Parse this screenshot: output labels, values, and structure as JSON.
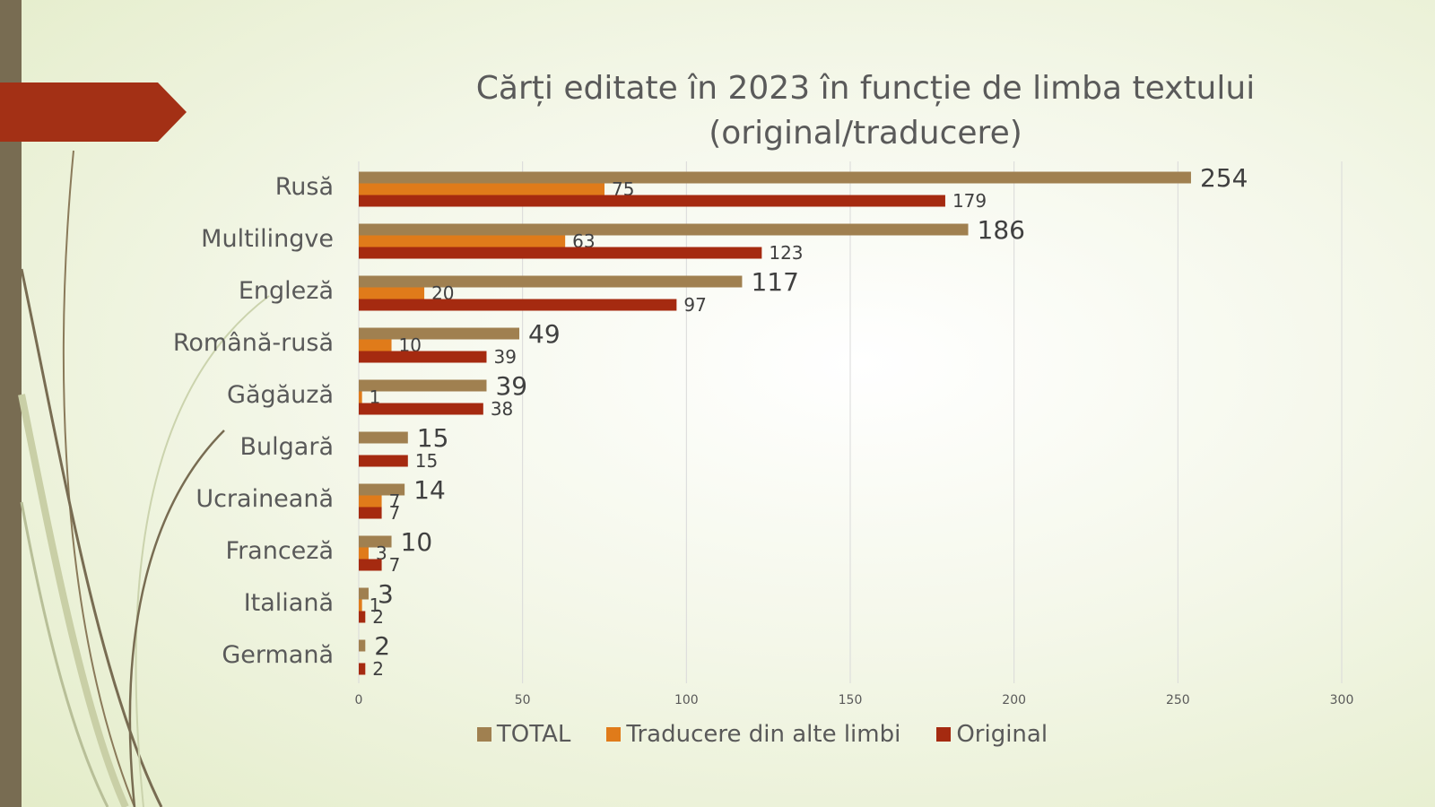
{
  "colors": {
    "left_bar": "#786c52",
    "arrow": "#a33015",
    "total": "#a08050",
    "translation": "#e07b1a",
    "original": "#a52a10",
    "gridline": "#d9d9d9",
    "text": "#595959"
  },
  "chart_data": {
    "type": "bar",
    "orientation": "horizontal",
    "title": "Cărți editate în 2023 în funcție de limba textului (original/traducere)",
    "title_lines": [
      "Cărți editate în 2023 în funcție de limba textului",
      "(original/traducere)"
    ],
    "categories": [
      "Rusă",
      "Multilingve",
      "Engleză",
      "Română-rusă",
      "Găgăuză",
      "Bulgară",
      "Ucraineană",
      "Franceză",
      "Italiană",
      "Germană"
    ],
    "series": [
      {
        "name": "TOTAL",
        "color": "#a08050",
        "values": [
          254,
          186,
          117,
          49,
          39,
          15,
          14,
          10,
          3,
          2
        ]
      },
      {
        "name": "Traducere din alte limbi",
        "color": "#e07b1a",
        "values": [
          75,
          63,
          20,
          10,
          1,
          null,
          7,
          3,
          1,
          null
        ]
      },
      {
        "name": "Original",
        "color": "#a52a10",
        "values": [
          179,
          123,
          97,
          39,
          38,
          15,
          7,
          7,
          2,
          2
        ]
      }
    ],
    "xlim": [
      0,
      300
    ],
    "xticks": [
      0,
      50,
      100,
      150,
      200,
      250,
      300
    ],
    "grid": true,
    "legend_position": "bottom"
  }
}
